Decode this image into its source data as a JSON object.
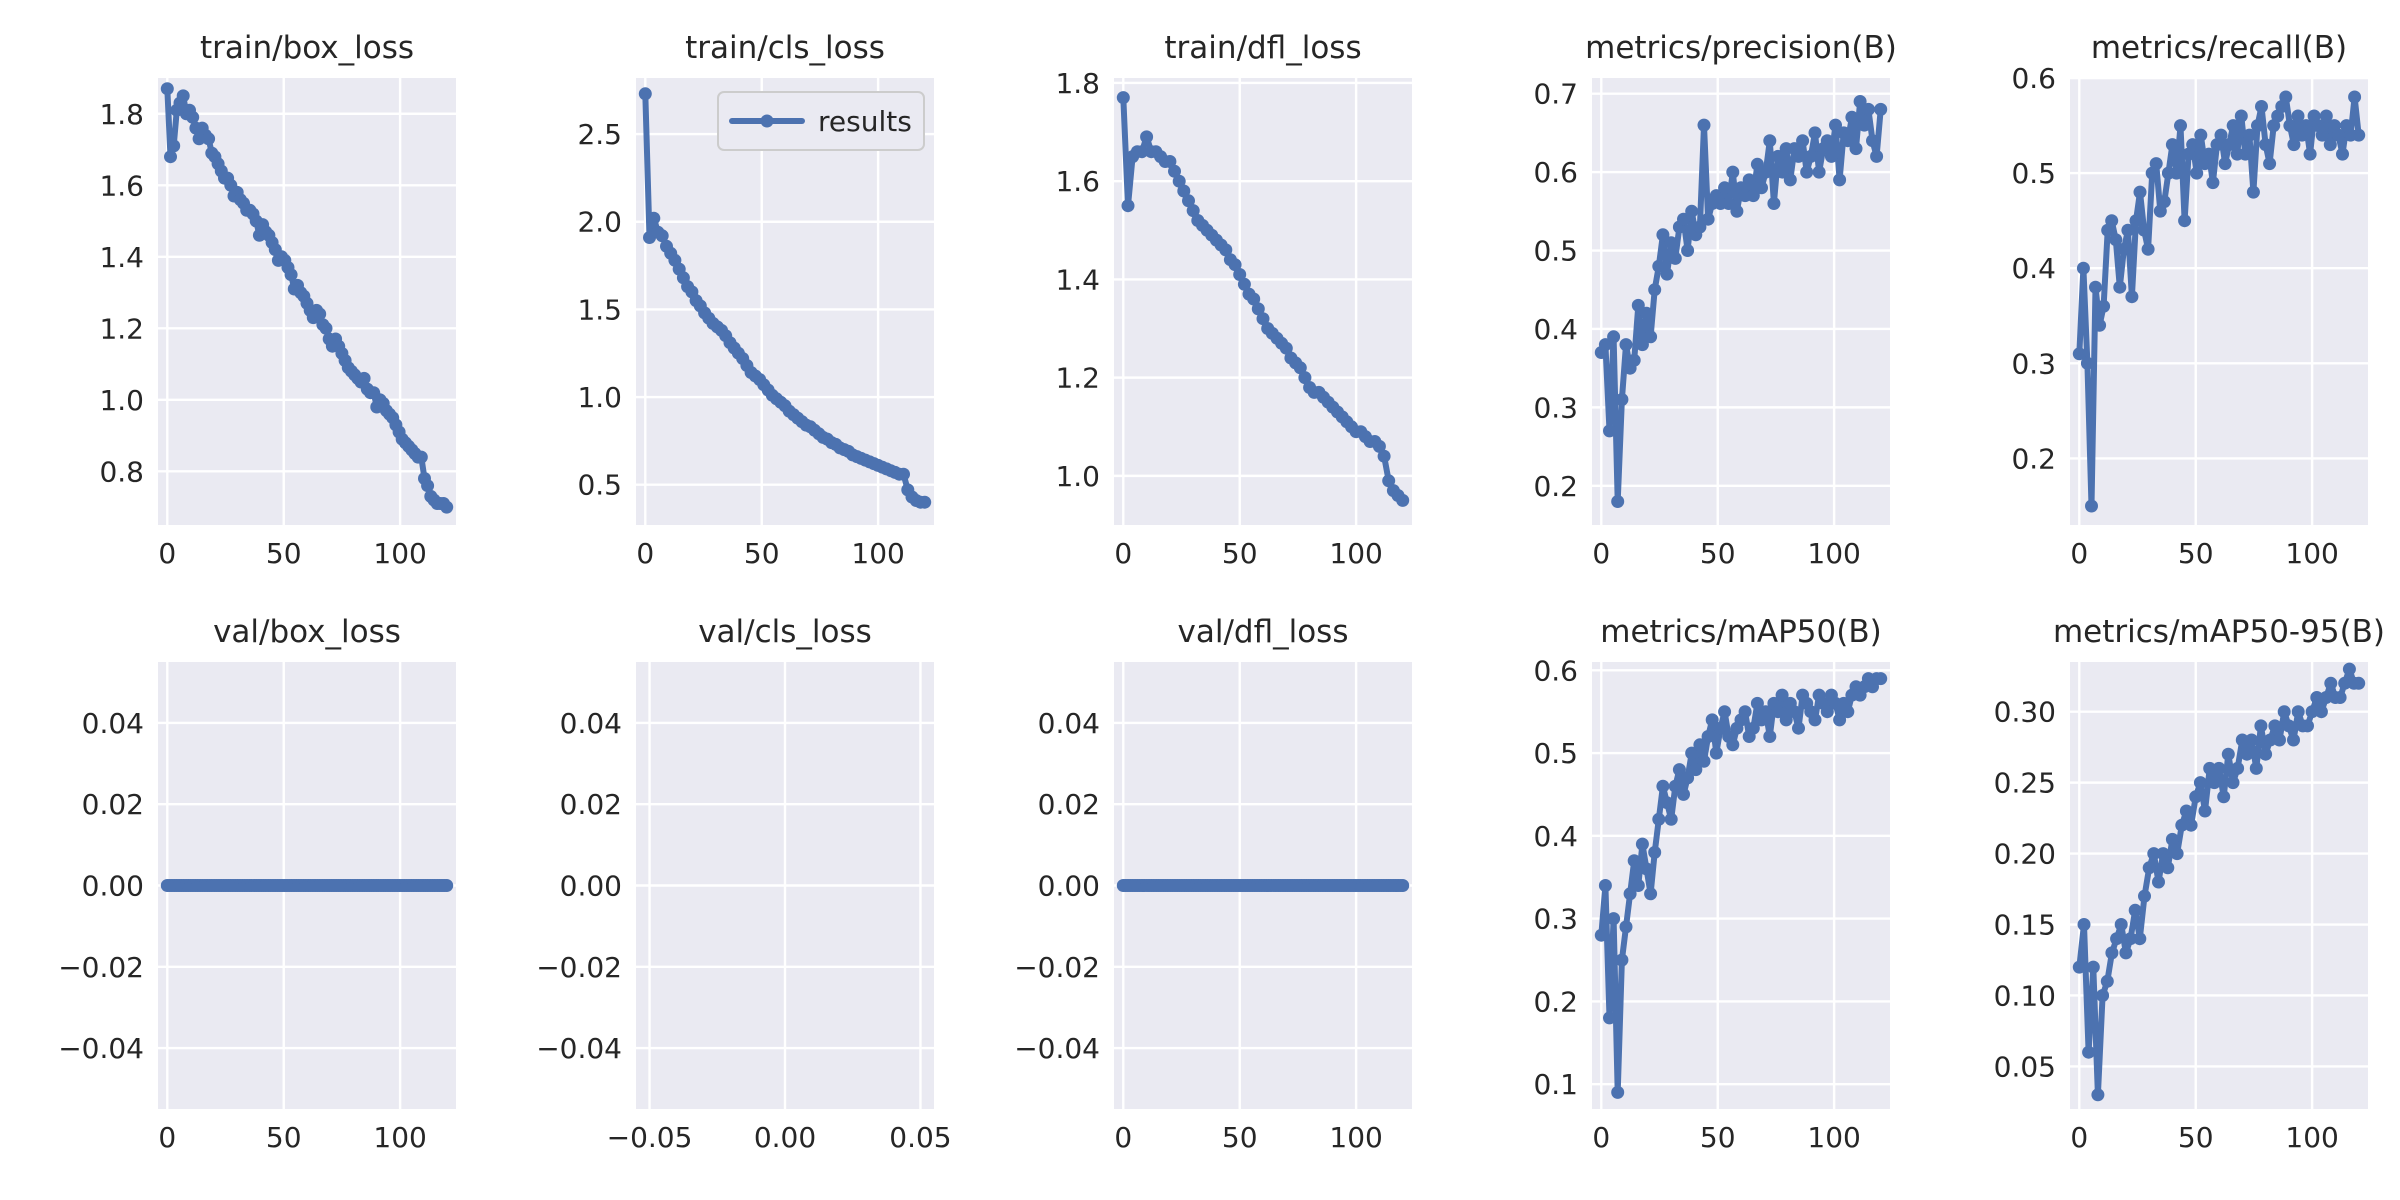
{
  "colors": {
    "series": "#4C72B0",
    "panel_bg": "#EAEAF2",
    "grid": "#ffffff",
    "text": "#262626"
  },
  "legend": {
    "label": "results",
    "placement": "upper right",
    "in_panel": 1
  },
  "chart_data": [
    {
      "type": "line",
      "title": "train/box_loss",
      "xlabel": "",
      "ylabel": "",
      "series_name": "results",
      "xlim": [
        -4,
        124
      ],
      "ylim": [
        0.65,
        1.9
      ],
      "grid": true,
      "xticks": [
        0,
        50,
        100
      ],
      "xtick_labels": [
        "0",
        "50",
        "100"
      ],
      "yticks": [
        0.8,
        1.0,
        1.2,
        1.4,
        1.6,
        1.8
      ],
      "ytick_labels": [
        "0.8",
        "1.0",
        "1.2",
        "1.4",
        "1.6",
        "1.8"
      ],
      "y": [
        1.87,
        1.68,
        1.71,
        1.81,
        1.83,
        1.85,
        1.8,
        1.81,
        1.79,
        1.76,
        1.73,
        1.76,
        1.74,
        1.73,
        1.69,
        1.68,
        1.66,
        1.64,
        1.62,
        1.62,
        1.6,
        1.57,
        1.58,
        1.56,
        1.55,
        1.53,
        1.53,
        1.52,
        1.5,
        1.46,
        1.49,
        1.47,
        1.46,
        1.44,
        1.42,
        1.39,
        1.4,
        1.39,
        1.37,
        1.35,
        1.31,
        1.32,
        1.3,
        1.29,
        1.27,
        1.25,
        1.23,
        1.25,
        1.24,
        1.21,
        1.2,
        1.17,
        1.15,
        1.17,
        1.15,
        1.13,
        1.11,
        1.09,
        1.08,
        1.07,
        1.06,
        1.05,
        1.06,
        1.03,
        1.02,
        1.02,
        0.98,
        1.0,
        0.99,
        0.97,
        0.96,
        0.95,
        0.93,
        0.91,
        0.89,
        0.88,
        0.87,
        0.86,
        0.85,
        0.84,
        0.84,
        0.78,
        0.76,
        0.73,
        0.72,
        0.71,
        0.71,
        0.71,
        0.7
      ]
    },
    {
      "type": "line",
      "title": "train/cls_loss",
      "xlabel": "",
      "ylabel": "",
      "series_name": "results",
      "xlim": [
        -4,
        124
      ],
      "ylim": [
        0.27,
        2.82
      ],
      "grid": true,
      "xticks": [
        0,
        50,
        100
      ],
      "xtick_labels": [
        "0",
        "50",
        "100"
      ],
      "yticks": [
        0.5,
        1.0,
        1.5,
        2.0,
        2.5
      ],
      "ytick_labels": [
        "0.5",
        "1.0",
        "1.5",
        "2.0",
        "2.5"
      ],
      "y": [
        2.73,
        1.91,
        2.02,
        1.94,
        1.92,
        1.86,
        1.82,
        1.78,
        1.73,
        1.68,
        1.63,
        1.6,
        1.55,
        1.52,
        1.48,
        1.45,
        1.42,
        1.4,
        1.38,
        1.35,
        1.31,
        1.28,
        1.25,
        1.22,
        1.18,
        1.14,
        1.12,
        1.1,
        1.07,
        1.04,
        1.01,
        0.99,
        0.97,
        0.95,
        0.92,
        0.9,
        0.88,
        0.86,
        0.84,
        0.83,
        0.81,
        0.79,
        0.77,
        0.76,
        0.74,
        0.73,
        0.71,
        0.7,
        0.69,
        0.67,
        0.66,
        0.65,
        0.64,
        0.63,
        0.62,
        0.61,
        0.6,
        0.59,
        0.58,
        0.57,
        0.56,
        0.56,
        0.47,
        0.43,
        0.41,
        0.4,
        0.4
      ]
    },
    {
      "type": "line",
      "title": "train/dfl_loss",
      "xlabel": "",
      "ylabel": "",
      "series_name": "results",
      "xlim": [
        -4,
        124
      ],
      "ylim": [
        0.9,
        1.81
      ],
      "grid": true,
      "xticks": [
        0,
        50,
        100
      ],
      "xtick_labels": [
        "0",
        "50",
        "100"
      ],
      "yticks": [
        1.0,
        1.2,
        1.4,
        1.6,
        1.8
      ],
      "ytick_labels": [
        "1.0",
        "1.2",
        "1.4",
        "1.6",
        "1.8"
      ],
      "y": [
        1.77,
        1.55,
        1.65,
        1.66,
        1.66,
        1.69,
        1.66,
        1.66,
        1.65,
        1.64,
        1.64,
        1.62,
        1.6,
        1.58,
        1.56,
        1.54,
        1.52,
        1.51,
        1.5,
        1.49,
        1.48,
        1.47,
        1.46,
        1.44,
        1.43,
        1.41,
        1.39,
        1.37,
        1.36,
        1.34,
        1.32,
        1.3,
        1.29,
        1.28,
        1.27,
        1.26,
        1.24,
        1.23,
        1.22,
        1.2,
        1.18,
        1.17,
        1.17,
        1.16,
        1.15,
        1.14,
        1.13,
        1.12,
        1.11,
        1.1,
        1.09,
        1.09,
        1.08,
        1.07,
        1.07,
        1.06,
        1.04,
        0.99,
        0.97,
        0.96,
        0.95
      ]
    },
    {
      "type": "line",
      "title": "metrics/precision(B)",
      "xlabel": "",
      "ylabel": "",
      "series_name": "results",
      "xlim": [
        -4,
        124
      ],
      "ylim": [
        0.15,
        0.72
      ],
      "grid": true,
      "xticks": [
        0,
        50,
        100
      ],
      "xtick_labels": [
        "0",
        "50",
        "100"
      ],
      "yticks": [
        0.2,
        0.3,
        0.4,
        0.5,
        0.6,
        0.7
      ],
      "ytick_labels": [
        "0.2",
        "0.3",
        "0.4",
        "0.5",
        "0.6",
        "0.7"
      ],
      "y": [
        0.37,
        0.38,
        0.27,
        0.39,
        0.18,
        0.31,
        0.38,
        0.35,
        0.36,
        0.43,
        0.38,
        0.42,
        0.39,
        0.45,
        0.48,
        0.52,
        0.47,
        0.51,
        0.49,
        0.53,
        0.54,
        0.5,
        0.55,
        0.52,
        0.53,
        0.66,
        0.54,
        0.56,
        0.57,
        0.56,
        0.58,
        0.56,
        0.6,
        0.55,
        0.58,
        0.57,
        0.59,
        0.57,
        0.61,
        0.58,
        0.6,
        0.64,
        0.56,
        0.62,
        0.6,
        0.63,
        0.59,
        0.63,
        0.62,
        0.64,
        0.6,
        0.62,
        0.65,
        0.6,
        0.63,
        0.64,
        0.62,
        0.66,
        0.59,
        0.65,
        0.64,
        0.67,
        0.63,
        0.69,
        0.66,
        0.68,
        0.64,
        0.62,
        0.68
      ]
    },
    {
      "type": "line",
      "title": "metrics/recall(B)",
      "xlabel": "",
      "ylabel": "",
      "series_name": "results",
      "xlim": [
        -4,
        124
      ],
      "ylim": [
        0.13,
        0.6
      ],
      "grid": true,
      "xticks": [
        0,
        50,
        100
      ],
      "xtick_labels": [
        "0",
        "50",
        "100"
      ],
      "yticks": [
        0.2,
        0.3,
        0.4,
        0.5,
        0.6
      ],
      "ytick_labels": [
        "0.2",
        "0.3",
        "0.4",
        "0.5",
        "0.6"
      ],
      "y": [
        0.31,
        0.4,
        0.3,
        0.15,
        0.38,
        0.34,
        0.36,
        0.44,
        0.45,
        0.43,
        0.38,
        0.42,
        0.44,
        0.37,
        0.45,
        0.48,
        0.44,
        0.42,
        0.5,
        0.51,
        0.46,
        0.47,
        0.5,
        0.53,
        0.5,
        0.55,
        0.45,
        0.52,
        0.53,
        0.5,
        0.54,
        0.51,
        0.52,
        0.49,
        0.53,
        0.54,
        0.51,
        0.53,
        0.55,
        0.52,
        0.56,
        0.52,
        0.54,
        0.48,
        0.55,
        0.57,
        0.53,
        0.51,
        0.55,
        0.56,
        0.57,
        0.58,
        0.55,
        0.53,
        0.56,
        0.54,
        0.55,
        0.52,
        0.56,
        0.55,
        0.54,
        0.56,
        0.53,
        0.55,
        0.54,
        0.52,
        0.55,
        0.54,
        0.58,
        0.54
      ]
    },
    {
      "type": "line",
      "title": "val/box_loss",
      "xlabel": "",
      "ylabel": "",
      "series_name": "results",
      "xlim": [
        -4,
        124
      ],
      "ylim": [
        -0.055,
        0.055
      ],
      "grid": true,
      "xticks": [
        0,
        50,
        100
      ],
      "xtick_labels": [
        "0",
        "50",
        "100"
      ],
      "yticks": [
        -0.04,
        -0.02,
        0,
        0.02,
        0.04
      ],
      "ytick_labels": [
        "−0.04",
        "−0.02",
        "0.00",
        "0.02",
        "0.04"
      ],
      "constant": 0,
      "count": 120
    },
    {
      "type": "line",
      "title": "val/cls_loss",
      "xlabel": "",
      "ylabel": "",
      "series_name": "results",
      "xlim": [
        -0.055,
        0.055
      ],
      "ylim": [
        -0.055,
        0.055
      ],
      "grid": true,
      "xticks": [
        -0.05,
        0,
        0.05
      ],
      "xtick_labels": [
        "−0.05",
        "0.00",
        "0.05"
      ],
      "yticks": [
        -0.04,
        -0.02,
        0,
        0.02,
        0.04
      ],
      "ytick_labels": [
        "−0.04",
        "−0.02",
        "0.00",
        "0.02",
        "0.04"
      ],
      "y": []
    },
    {
      "type": "line",
      "title": "val/dfl_loss",
      "xlabel": "",
      "ylabel": "",
      "series_name": "results",
      "xlim": [
        -4,
        124
      ],
      "ylim": [
        -0.055,
        0.055
      ],
      "grid": true,
      "xticks": [
        0,
        50,
        100
      ],
      "xtick_labels": [
        "0",
        "50",
        "100"
      ],
      "yticks": [
        -0.04,
        -0.02,
        0,
        0.02,
        0.04
      ],
      "ytick_labels": [
        "−0.04",
        "−0.02",
        "0.00",
        "0.02",
        "0.04"
      ],
      "constant": 0,
      "count": 120
    },
    {
      "type": "line",
      "title": "metrics/mAP50(B)",
      "xlabel": "",
      "ylabel": "",
      "series_name": "results",
      "xlim": [
        -4,
        124
      ],
      "ylim": [
        0.07,
        0.61
      ],
      "grid": true,
      "xticks": [
        0,
        50,
        100
      ],
      "xtick_labels": [
        "0",
        "50",
        "100"
      ],
      "yticks": [
        0.1,
        0.2,
        0.3,
        0.4,
        0.5,
        0.6
      ],
      "ytick_labels": [
        "0.1",
        "0.2",
        "0.3",
        "0.4",
        "0.5",
        "0.6"
      ],
      "y": [
        0.28,
        0.34,
        0.18,
        0.3,
        0.09,
        0.25,
        0.29,
        0.33,
        0.37,
        0.34,
        0.39,
        0.36,
        0.33,
        0.38,
        0.42,
        0.46,
        0.44,
        0.42,
        0.46,
        0.48,
        0.45,
        0.47,
        0.5,
        0.48,
        0.51,
        0.49,
        0.52,
        0.54,
        0.5,
        0.53,
        0.55,
        0.52,
        0.51,
        0.53,
        0.54,
        0.55,
        0.52,
        0.53,
        0.56,
        0.54,
        0.55,
        0.52,
        0.56,
        0.55,
        0.57,
        0.54,
        0.56,
        0.55,
        0.53,
        0.57,
        0.56,
        0.55,
        0.54,
        0.57,
        0.56,
        0.55,
        0.57,
        0.56,
        0.54,
        0.56,
        0.55,
        0.57,
        0.58,
        0.57,
        0.58,
        0.59,
        0.58,
        0.59,
        0.59
      ]
    },
    {
      "type": "line",
      "title": "metrics/mAP50-95(B)",
      "xlabel": "",
      "ylabel": "",
      "series_name": "results",
      "xlim": [
        -4,
        124
      ],
      "ylim": [
        0.02,
        0.335
      ],
      "grid": true,
      "xticks": [
        0,
        50,
        100
      ],
      "xtick_labels": [
        "0",
        "50",
        "100"
      ],
      "yticks": [
        0.05,
        0.1,
        0.15,
        0.2,
        0.25,
        0.3
      ],
      "ytick_labels": [
        "0.05",
        "0.10",
        "0.15",
        "0.20",
        "0.25",
        "0.30"
      ],
      "y": [
        0.12,
        0.15,
        0.06,
        0.12,
        0.03,
        0.1,
        0.11,
        0.13,
        0.14,
        0.15,
        0.13,
        0.14,
        0.16,
        0.14,
        0.17,
        0.19,
        0.2,
        0.18,
        0.2,
        0.19,
        0.21,
        0.2,
        0.22,
        0.23,
        0.22,
        0.24,
        0.25,
        0.23,
        0.26,
        0.25,
        0.26,
        0.24,
        0.27,
        0.25,
        0.26,
        0.28,
        0.27,
        0.28,
        0.26,
        0.29,
        0.27,
        0.28,
        0.29,
        0.28,
        0.3,
        0.29,
        0.28,
        0.3,
        0.29,
        0.29,
        0.3,
        0.31,
        0.3,
        0.31,
        0.32,
        0.31,
        0.31,
        0.32,
        0.33,
        0.32,
        0.32
      ]
    }
  ]
}
